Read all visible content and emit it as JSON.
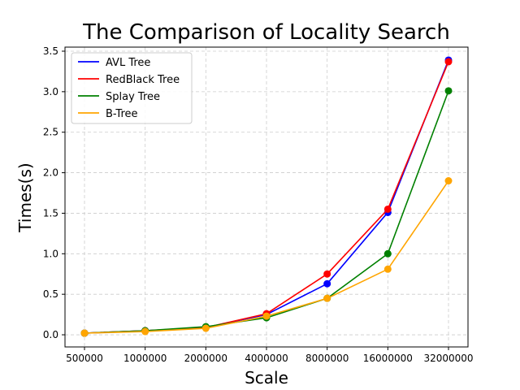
{
  "chart_data": {
    "type": "line",
    "title": "The Comparison of Locality Search",
    "xlabel": "Scale",
    "ylabel": "Times(s)",
    "categories": [
      "500000",
      "1000000",
      "2000000",
      "4000000",
      "8000000",
      "16000000",
      "32000000"
    ],
    "ylim": [
      -0.15,
      3.55
    ],
    "yticks": [
      "0.0",
      "0.5",
      "1.0",
      "1.5",
      "2.0",
      "2.5",
      "3.0",
      "3.5"
    ],
    "grid": true,
    "legend_position": "top-left",
    "series": [
      {
        "name": "AVL Tree",
        "color": "#0000ff",
        "values": [
          0.02,
          0.05,
          0.09,
          0.25,
          0.63,
          1.51,
          3.39
        ]
      },
      {
        "name": "RedBlack Tree",
        "color": "#ff0000",
        "values": [
          0.02,
          0.05,
          0.09,
          0.26,
          0.75,
          1.55,
          3.37
        ]
      },
      {
        "name": "Splay Tree",
        "color": "#008000",
        "values": [
          0.02,
          0.05,
          0.1,
          0.21,
          0.45,
          1.0,
          3.01
        ]
      },
      {
        "name": "B-Tree",
        "color": "#ffa500",
        "values": [
          0.02,
          0.04,
          0.08,
          0.23,
          0.45,
          0.81,
          1.9
        ]
      }
    ]
  }
}
